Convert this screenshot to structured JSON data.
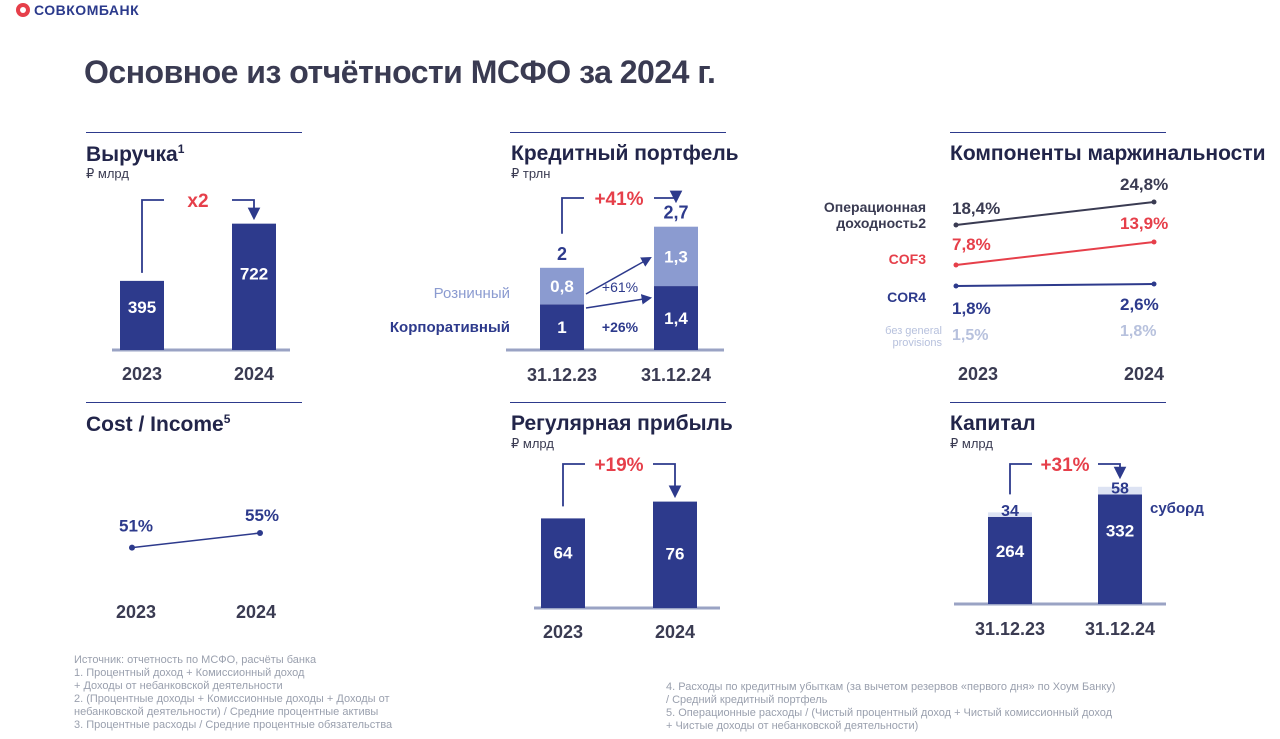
{
  "header": {
    "brand": "СОВКОМБАНК",
    "title": "Основное из отчётности МСФО за 2024 г."
  },
  "colors": {
    "navy": "#2d3a8c",
    "light_blue": "#8b9bd0",
    "pale_blue": "#dde3f3",
    "red": "#e63f4a",
    "dark": "#3a3b52",
    "gray": "#b3b9c7"
  },
  "panels": {
    "revenue": {
      "title": "Выручка",
      "sup": "1",
      "unit": "₽ млрд"
    },
    "loan_portfolio": {
      "title": "Кредитный портфель",
      "unit": "₽ трлн"
    },
    "margin_components": {
      "title": "Компоненты маржинальности"
    },
    "cost_income": {
      "title": "Cost / Income",
      "sup": "5"
    },
    "regular_profit": {
      "title": "Регулярная прибыль",
      "unit": "₽ млрд"
    },
    "capital": {
      "title": "Капитал",
      "unit": "₽ млрд"
    }
  },
  "chart_data": [
    {
      "id": "revenue",
      "type": "bar",
      "title": "Выручка",
      "unit": "₽ млрд",
      "categories": [
        "2023",
        "2024"
      ],
      "values": [
        395,
        722
      ],
      "value_labels": [
        "395",
        "722"
      ],
      "growth_label": "x2",
      "ylim": [
        0,
        800
      ]
    },
    {
      "id": "loan_portfolio",
      "type": "bar",
      "stacked": true,
      "title": "Кредитный портфель",
      "unit": "₽ трлн",
      "categories": [
        "31.12.23",
        "31.12.24"
      ],
      "series": [
        {
          "name": "Корпоративный",
          "values": [
            1.0,
            1.4
          ],
          "value_labels": [
            "1",
            "1,4"
          ],
          "growth_label": "+26%"
        },
        {
          "name": "Розничный",
          "values": [
            0.8,
            1.3
          ],
          "value_labels": [
            "0,8",
            "1,3"
          ],
          "growth_label": "+61%"
        }
      ],
      "totals": [
        2.0,
        2.7
      ],
      "total_labels": [
        "2",
        "2,7"
      ],
      "growth_label": "+41%",
      "ylim": [
        0,
        3
      ]
    },
    {
      "id": "margin_components",
      "type": "line",
      "title": "Компоненты маржинальности",
      "categories": [
        "2023",
        "2024"
      ],
      "series": [
        {
          "name": "Операционная доходность",
          "sup": "2",
          "values": [
            18.4,
            24.8
          ],
          "value_labels": [
            "18,4%",
            "24,8%"
          ]
        },
        {
          "name": "COF",
          "sup": "3",
          "values": [
            7.8,
            13.9
          ],
          "value_labels": [
            "7,8%",
            "13,9%"
          ]
        },
        {
          "name": "COR",
          "sup": "4",
          "values": [
            1.8,
            2.6
          ],
          "value_labels": [
            "1,8%",
            "2,6%"
          ]
        },
        {
          "name": "без general provisions",
          "values": [
            1.5,
            1.8
          ],
          "value_labels": [
            "1,5%",
            "1,8%"
          ]
        }
      ]
    },
    {
      "id": "cost_income",
      "type": "line",
      "title": "Cost / Income",
      "categories": [
        "2023",
        "2024"
      ],
      "series": [
        {
          "name": "Cost / Income",
          "values": [
            51,
            55
          ],
          "value_labels": [
            "51%",
            "55%"
          ]
        }
      ],
      "ylim": [
        40,
        70
      ]
    },
    {
      "id": "regular_profit",
      "type": "bar",
      "title": "Регулярная прибыль",
      "unit": "₽ млрд",
      "categories": [
        "2023",
        "2024"
      ],
      "values": [
        64,
        76
      ],
      "value_labels": [
        "64",
        "76"
      ],
      "growth_label": "+19%",
      "ylim": [
        0,
        100
      ]
    },
    {
      "id": "capital",
      "type": "bar",
      "stacked": true,
      "title": "Капитал",
      "unit": "₽ млрд",
      "categories": [
        "31.12.23",
        "31.12.24"
      ],
      "series": [
        {
          "name": "Капитал",
          "values": [
            264,
            332
          ],
          "value_labels": [
            "264",
            "332"
          ]
        },
        {
          "name": "субορд",
          "values": [
            34,
            58
          ],
          "value_labels": [
            "34",
            "58"
          ]
        }
      ],
      "growth_label": "+31%",
      "ylim": [
        0,
        500
      ]
    }
  ],
  "footnotes": {
    "left": [
      "Источник: отчетность по МСФО, расчёты банка",
      "1.   Процентный доход + Комиссионный доход",
      "       + Доходы от небанковской деятельности",
      "2.   (Процентные доходы + Комиссионные доходы + Доходы от",
      "       небанковской деятельности) / Средние процентные активы",
      "3.   Процентные расходы / Средние процентные обязательства"
    ],
    "right": [
      "4.   Расходы по кредитным убыткам (за вычетом резервов «первого дня» по Хоум Банку)",
      "       / Средний кредитный портфель",
      "5.   Операционные расходы / (Чистый процентный доход + Чистый комиссионный доход",
      "       + Чистые доходы от небанковской деятельности)"
    ]
  }
}
